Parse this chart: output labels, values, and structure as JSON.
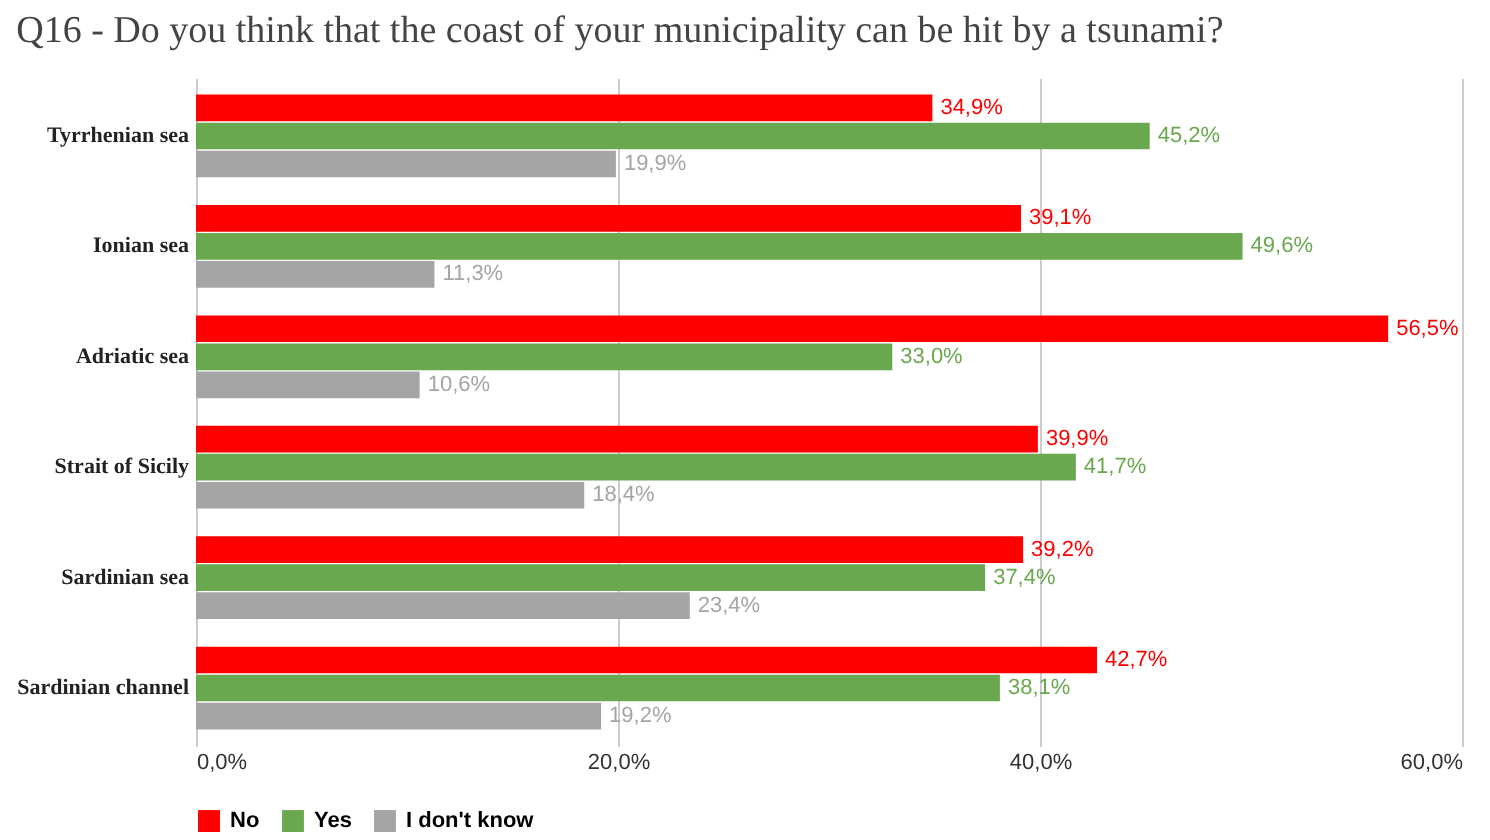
{
  "chart_data": {
    "type": "bar",
    "orientation": "horizontal",
    "title": "Q16 - Do you think that the coast of your municipality can be hit by a tsunami?",
    "categories": [
      "Tyrrhenian sea",
      "Ionian sea",
      "Adriatic sea",
      "Strait of Sicily",
      "Sardinian sea",
      "Sardinian channel"
    ],
    "series": [
      {
        "name": "No",
        "color": "#ff0000",
        "values": [
          34.9,
          39.1,
          56.5,
          39.9,
          39.2,
          42.7
        ],
        "value_labels": [
          "34,9%",
          "39,1%",
          "56,5%",
          "39,9%",
          "39,2%",
          "42,7%"
        ]
      },
      {
        "name": "Yes",
        "color": "#6aa84f",
        "values": [
          45.2,
          49.6,
          33.0,
          41.7,
          37.4,
          38.1
        ],
        "value_labels": [
          "45,2%",
          "49,6%",
          "33,0%",
          "41,7%",
          "37,4%",
          "38,1%"
        ]
      },
      {
        "name": "I don't know",
        "color": "#a5a5a5",
        "values": [
          19.9,
          11.3,
          10.6,
          18.4,
          23.4,
          19.2
        ],
        "value_labels": [
          "19,9%",
          "11,3%",
          "10,6%",
          "18,4%",
          "23,4%",
          "19,2%"
        ]
      }
    ],
    "xlim": [
      0,
      60
    ],
    "xticks": [
      {
        "value": 0,
        "label": "0,0%"
      },
      {
        "value": 20,
        "label": "20,0%"
      },
      {
        "value": 40,
        "label": "40,0%"
      },
      {
        "value": 60,
        "label": "60,0%"
      }
    ],
    "grid": "x",
    "legend": "bottom"
  }
}
